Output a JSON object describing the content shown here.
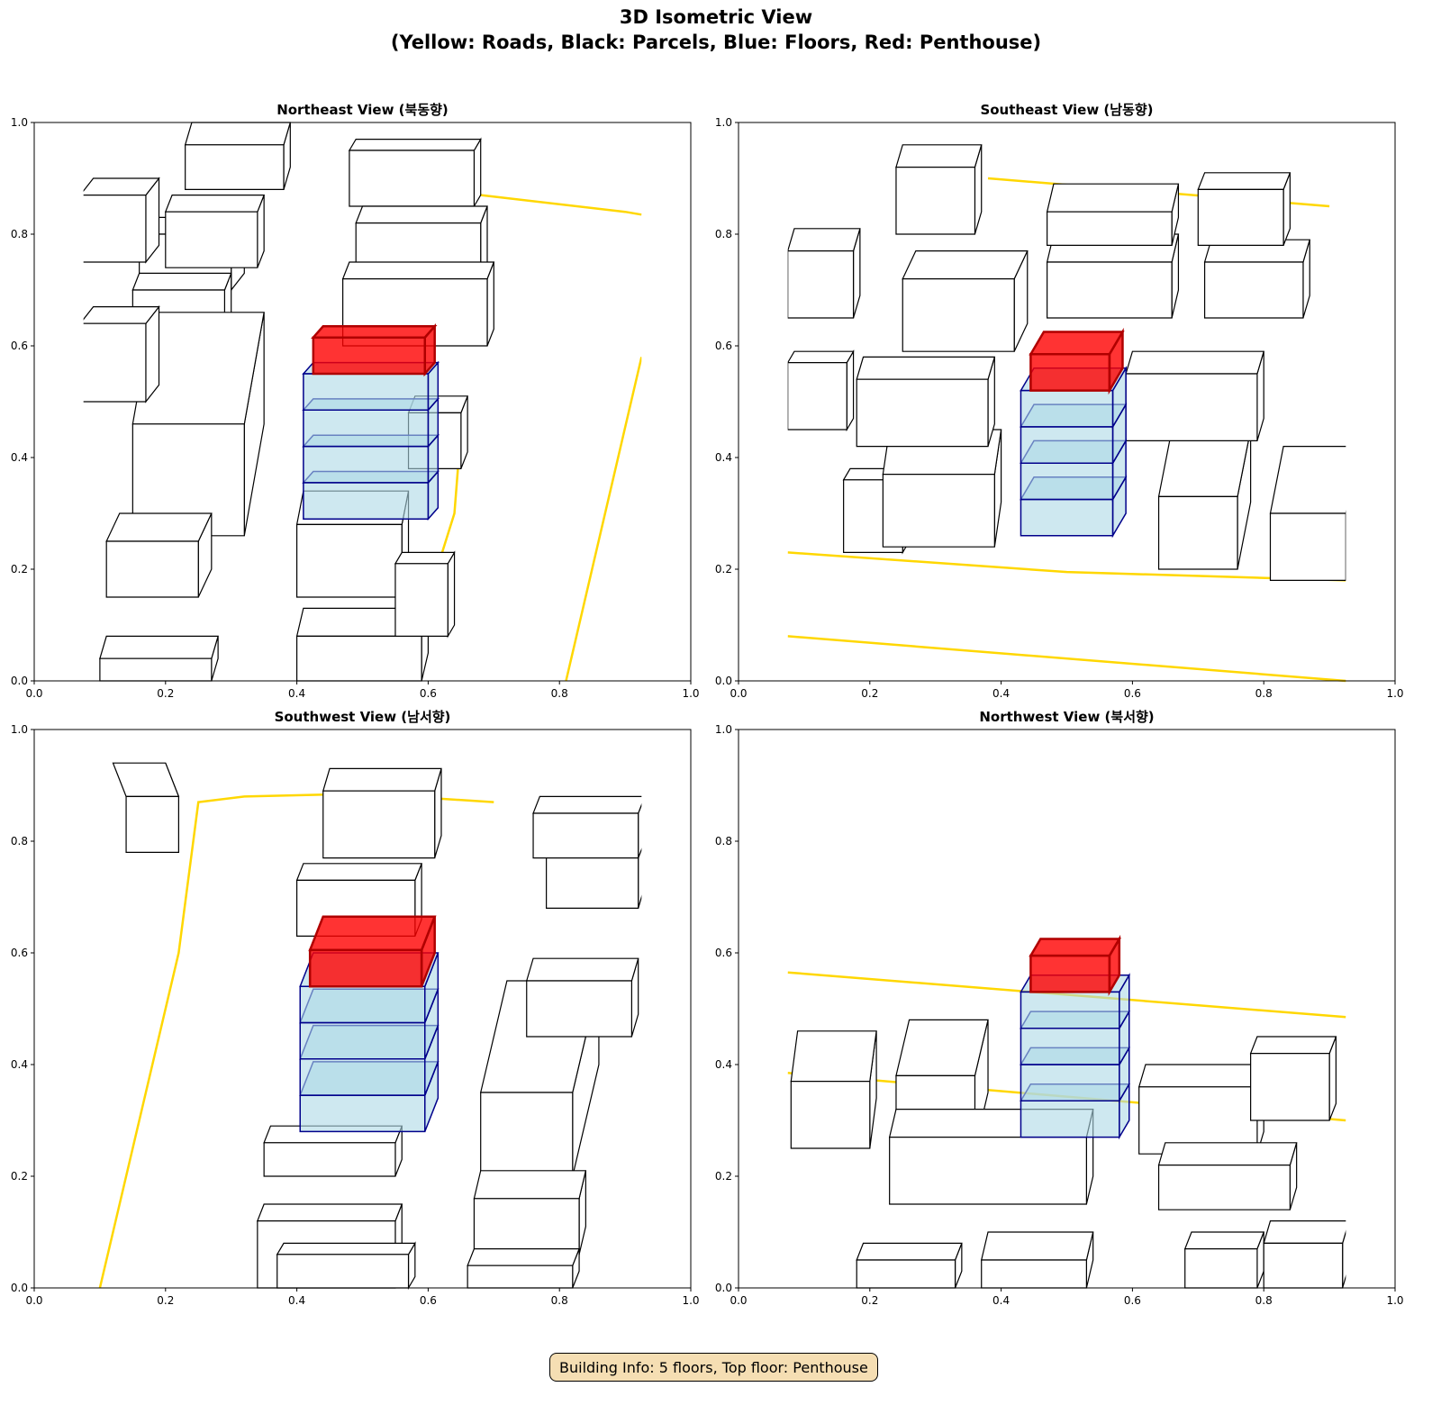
{
  "figure": {
    "title_line1": "3D Isometric View",
    "title_line2": "(Yellow: Roads, Black: Parcels, Blue: Floors, Red: Penthouse)",
    "info_box": "Building Info: 5 floors, Top floor: Penthouse"
  },
  "axes": {
    "xticks": [
      "0.0",
      "0.2",
      "0.4",
      "0.6",
      "0.8",
      "1.0"
    ],
    "yticks": [
      "0.0",
      "0.2",
      "0.4",
      "0.6",
      "0.8",
      "1.0"
    ],
    "xlim": [
      0,
      1
    ],
    "ylim": [
      0,
      1
    ]
  },
  "panels": [
    {
      "title": "Northeast View (북동향)"
    },
    {
      "title": "Southeast View (남동향)"
    },
    {
      "title": "Southwest View (남서향)"
    },
    {
      "title": "Northwest View (북서향)"
    }
  ],
  "colors": {
    "roads": "#ffd700",
    "parcels": "#000000",
    "floors": "#add8e6",
    "floor_edges": "#00008b",
    "penthouse": "#ff0000",
    "info_bg": "#f5deb3"
  }
}
